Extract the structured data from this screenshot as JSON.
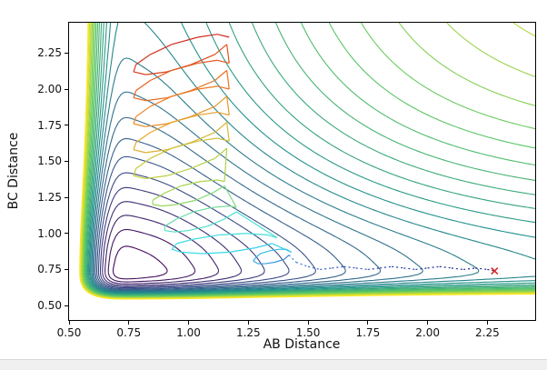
{
  "chart_data": {
    "type": "contour",
    "title": "",
    "xlabel": "AB Distance",
    "ylabel": "BC Distance",
    "xlim": [
      0.5,
      2.45
    ],
    "ylim": [
      0.4,
      2.46
    ],
    "xticks": {
      "values": [
        0.5,
        0.75,
        1.0,
        1.25,
        1.5,
        1.75,
        2.0,
        2.25
      ],
      "labels": [
        "0.50",
        "0.75",
        "1.00",
        "1.25",
        "1.50",
        "1.75",
        "2.00",
        "2.25"
      ]
    },
    "yticks": {
      "values": [
        0.5,
        0.75,
        1.0,
        1.25,
        1.5,
        1.75,
        2.0,
        2.25
      ],
      "labels": [
        "0.50",
        "0.75",
        "1.00",
        "1.25",
        "1.50",
        "1.75",
        "2.00",
        "2.25"
      ]
    },
    "colormap": "viridis",
    "contours": {
      "level_min": 0.06,
      "level_max": 1.96,
      "n_levels": 26
    },
    "surface": {
      "model": "L-shaped potential energy surface V(AB,BC) = M(AB) + M(BC), Morse-like wells along both bond-distance channels",
      "params": {
        "r0": 0.74,
        "a_repulsive": 4.5,
        "a_attractive": 1.6,
        "depth": 1.0
      }
    },
    "trajectory": {
      "description": "reaction trajectory colored by time from red (start, top) through orange, yellow-green and cyan to dark blue (end, right); final portion dotted",
      "color_over_time": [
        "red",
        "orange",
        "gold",
        "yellow-green",
        "cyan",
        "dark-blue"
      ],
      "points": [
        [
          1.17,
          2.36
        ],
        [
          1.12,
          2.38
        ],
        [
          1.04,
          2.36
        ],
        [
          0.93,
          2.31
        ],
        [
          0.84,
          2.24
        ],
        [
          0.78,
          2.17
        ],
        [
          0.77,
          2.12
        ],
        [
          0.82,
          2.1
        ],
        [
          0.91,
          2.12
        ],
        [
          1.01,
          2.17
        ],
        [
          1.11,
          2.24
        ],
        [
          1.16,
          2.31
        ],
        [
          1.17,
          2.18
        ],
        [
          1.12,
          2.2
        ],
        [
          1.04,
          2.18
        ],
        [
          0.93,
          2.13
        ],
        [
          0.84,
          2.06
        ],
        [
          0.78,
          1.99
        ],
        [
          0.77,
          1.94
        ],
        [
          0.82,
          1.92
        ],
        [
          0.91,
          1.94
        ],
        [
          1.01,
          1.99
        ],
        [
          1.11,
          2.06
        ],
        [
          1.16,
          2.13
        ],
        [
          1.17,
          2.0
        ],
        [
          1.12,
          2.02
        ],
        [
          1.04,
          2.0
        ],
        [
          0.93,
          1.95
        ],
        [
          0.84,
          1.88
        ],
        [
          0.78,
          1.81
        ],
        [
          0.77,
          1.76
        ],
        [
          0.82,
          1.74
        ],
        [
          0.91,
          1.76
        ],
        [
          1.01,
          1.81
        ],
        [
          1.11,
          1.88
        ],
        [
          1.16,
          1.95
        ],
        [
          1.17,
          1.82
        ],
        [
          1.12,
          1.84
        ],
        [
          1.04,
          1.82
        ],
        [
          0.93,
          1.77
        ],
        [
          0.84,
          1.7
        ],
        [
          0.78,
          1.63
        ],
        [
          0.77,
          1.58
        ],
        [
          0.82,
          1.56
        ],
        [
          0.91,
          1.58
        ],
        [
          1.01,
          1.63
        ],
        [
          1.11,
          1.7
        ],
        [
          1.16,
          1.77
        ],
        [
          1.17,
          1.64
        ],
        [
          1.12,
          1.66
        ],
        [
          1.04,
          1.64
        ],
        [
          0.93,
          1.59
        ],
        [
          0.84,
          1.52
        ],
        [
          0.78,
          1.45
        ],
        [
          0.77,
          1.4
        ],
        [
          0.82,
          1.38
        ],
        [
          0.91,
          1.4
        ],
        [
          1.01,
          1.45
        ],
        [
          1.11,
          1.52
        ],
        [
          1.16,
          1.59
        ],
        [
          1.15,
          1.36
        ],
        [
          1.12,
          1.37
        ],
        [
          1.05,
          1.36
        ],
        [
          0.97,
          1.33
        ],
        [
          0.9,
          1.28
        ],
        [
          0.85,
          1.23
        ],
        [
          0.85,
          1.2
        ],
        [
          0.89,
          1.19
        ],
        [
          0.95,
          1.2
        ],
        [
          1.03,
          1.23
        ],
        [
          1.1,
          1.28
        ],
        [
          1.15,
          1.33
        ],
        [
          1.2,
          1.18
        ],
        [
          1.17,
          1.19
        ],
        [
          1.1,
          1.18
        ],
        [
          1.02,
          1.15
        ],
        [
          0.95,
          1.1
        ],
        [
          0.9,
          1.05
        ],
        [
          0.9,
          1.02
        ],
        [
          0.94,
          1.01
        ],
        [
          1.0,
          1.02
        ],
        [
          1.08,
          1.05
        ],
        [
          1.15,
          1.1
        ],
        [
          1.2,
          1.15
        ],
        [
          1.37,
          0.97
        ],
        [
          1.33,
          0.99
        ],
        [
          1.24,
          1.0
        ],
        [
          1.13,
          0.99
        ],
        [
          1.02,
          0.96
        ],
        [
          0.95,
          0.93
        ],
        [
          0.93,
          0.89
        ],
        [
          0.97,
          0.87
        ],
        [
          1.06,
          0.86
        ],
        [
          1.17,
          0.87
        ],
        [
          1.28,
          0.9
        ],
        [
          1.35,
          0.93
        ],
        [
          1.43,
          0.87
        ],
        [
          1.41,
          0.89
        ],
        [
          1.38,
          0.89
        ],
        [
          1.34,
          0.88
        ],
        [
          1.3,
          0.86
        ],
        [
          1.28,
          0.83
        ],
        [
          1.27,
          0.81
        ],
        [
          1.29,
          0.79
        ],
        [
          1.32,
          0.79
        ],
        [
          1.36,
          0.8
        ],
        [
          1.4,
          0.82
        ],
        [
          1.42,
          0.85
        ],
        [
          1.45,
          0.8
        ],
        [
          1.5,
          0.77
        ],
        [
          1.55,
          0.75
        ],
        [
          1.6,
          0.76
        ],
        [
          1.65,
          0.77
        ],
        [
          1.7,
          0.76
        ],
        [
          1.75,
          0.75
        ],
        [
          1.8,
          0.76
        ],
        [
          1.85,
          0.77
        ],
        [
          1.9,
          0.76
        ],
        [
          1.95,
          0.75
        ],
        [
          2.0,
          0.76
        ],
        [
          2.05,
          0.77
        ],
        [
          2.1,
          0.76
        ],
        [
          2.15,
          0.75
        ],
        [
          2.2,
          0.76
        ],
        [
          2.25,
          0.75
        ],
        [
          2.28,
          0.74
        ]
      ]
    },
    "end_marker": {
      "x": 2.28,
      "y": 0.74,
      "symbol": "x",
      "color": "#d62728"
    }
  }
}
